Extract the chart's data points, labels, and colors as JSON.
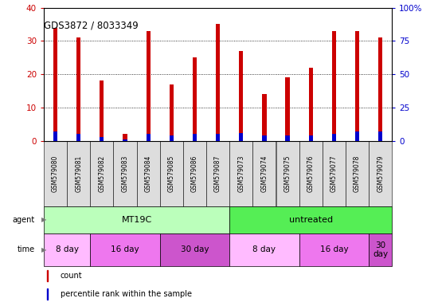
{
  "title": "GDS3872 / 8033349",
  "samples": [
    "GSM579080",
    "GSM579081",
    "GSM579082",
    "GSM579083",
    "GSM579084",
    "GSM579085",
    "GSM579086",
    "GSM579087",
    "GSM579073",
    "GSM579074",
    "GSM579075",
    "GSM579076",
    "GSM579077",
    "GSM579078",
    "GSM579079"
  ],
  "count_values": [
    34,
    31,
    18,
    2,
    33,
    17,
    25,
    35,
    27,
    14,
    19,
    22,
    33,
    33,
    31
  ],
  "percentile_values": [
    7,
    5,
    3,
    1,
    5,
    4,
    5,
    5,
    6,
    4,
    4,
    4,
    5,
    7,
    7
  ],
  "ylim_left": [
    0,
    40
  ],
  "ylim_right": [
    0,
    100
  ],
  "yticks_left": [
    0,
    10,
    20,
    30,
    40
  ],
  "yticks_right": [
    0,
    25,
    50,
    75,
    100
  ],
  "bar_color_count": "#cc0000",
  "bar_color_pct": "#0000cc",
  "agent_groups": [
    {
      "label": "MT19C",
      "start": 0,
      "end": 7,
      "color": "#bbffbb"
    },
    {
      "label": "untreated",
      "start": 8,
      "end": 14,
      "color": "#55ee55"
    }
  ],
  "time_groups": [
    {
      "label": "8 day",
      "start": 0,
      "end": 1,
      "color": "#ffbbff"
    },
    {
      "label": "16 day",
      "start": 2,
      "end": 4,
      "color": "#ee77ee"
    },
    {
      "label": "30 day",
      "start": 5,
      "end": 7,
      "color": "#cc55cc"
    },
    {
      "label": "8 day",
      "start": 8,
      "end": 10,
      "color": "#ffbbff"
    },
    {
      "label": "16 day",
      "start": 11,
      "end": 13,
      "color": "#ee77ee"
    },
    {
      "label": "30\nday",
      "start": 14,
      "end": 14,
      "color": "#cc55cc"
    }
  ],
  "legend_count_label": "count",
  "legend_pct_label": "percentile rank within the sample",
  "grid_color": "#000000",
  "background_color": "#ffffff",
  "agent_label": "agent",
  "time_label": "time",
  "right_yaxis_color": "#0000cc",
  "left_yaxis_color": "#cc0000",
  "tick_label_color": "#cc0000",
  "xlabel_bg": "#dddddd"
}
